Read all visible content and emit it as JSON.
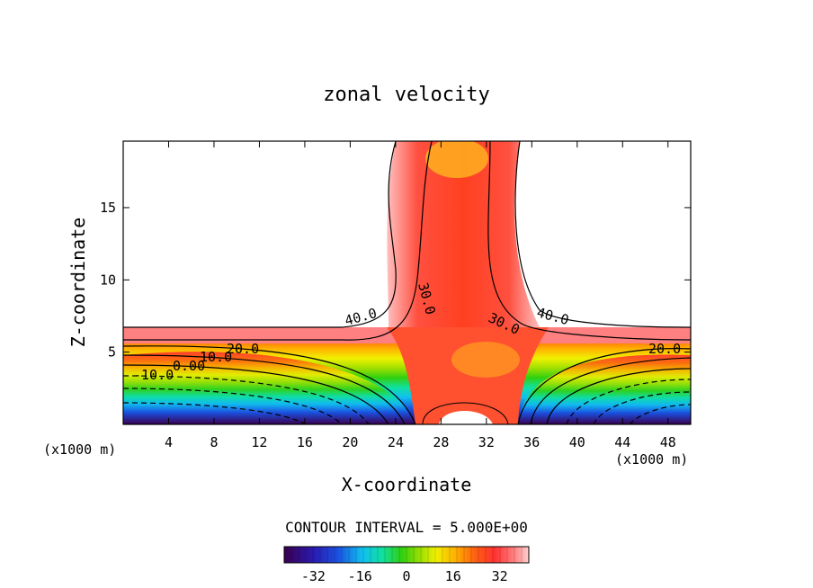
{
  "chart_data": {
    "type": "heatmap",
    "title": "zonal velocity",
    "xlabel": "X-coordinate",
    "ylabel": "Z-coordinate",
    "x_unit_label_left": "(x1000 m)",
    "x_unit_label_right": "(x1000 m)",
    "xlim": [
      0,
      50
    ],
    "ylim": [
      0,
      19.6
    ],
    "x_ticks": [
      4,
      8,
      12,
      16,
      20,
      24,
      28,
      32,
      36,
      40,
      44,
      48
    ],
    "y_ticks": [
      5,
      10,
      15
    ],
    "contour_interval_text": "CONTOUR INTERVAL = 5.000E+00",
    "contour_labels": [
      "40.0",
      "30.0",
      "30.0",
      "40.0",
      "20.0",
      "20.0",
      "10.0",
      "0.00",
      "-10.0"
    ],
    "colorbar": {
      "range": [
        -42,
        42
      ],
      "ticks": [
        -32,
        -16,
        0,
        16,
        32
      ],
      "tick_labels": [
        "-32",
        "-16",
        "0",
        "16",
        "32"
      ]
    },
    "colormap": [
      "#3a0050",
      "#2a1ab0",
      "#1a50e0",
      "#10c0f0",
      "#10e0a0",
      "#30d010",
      "#a0e000",
      "#f0f000",
      "#ffb000",
      "#ff6010",
      "#ff3030",
      "#ff8080",
      "#ffd0d0"
    ],
    "field_description_points": {
      "background_value": 45,
      "jet_core_value": 24,
      "lower_jet_value": 25,
      "surface_min_value": -40
    }
  }
}
